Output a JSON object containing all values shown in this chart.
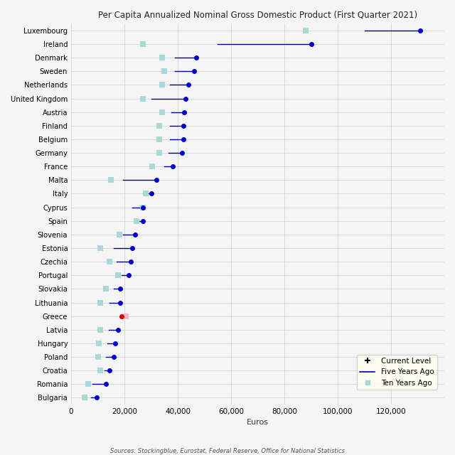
{
  "title": "Per Capita Annualized Nominal Gross Domestic Product (First Quarter 2021)",
  "xlabel": "Euros",
  "source_text": "Sources: Stockingblue, Eurostat, Federal Reserve, Office for National Statistics",
  "countries": [
    "Luxembourg",
    "Ireland",
    "Denmark",
    "Sweden",
    "Netherlands",
    "United Kingdom",
    "Austria",
    "Finland",
    "Belgium",
    "Germany",
    "France",
    "Malta",
    "Italy",
    "Cyprus",
    "Spain",
    "Slovenia",
    "Estonia",
    "Czechia",
    "Portugal",
    "Slovakia",
    "Lithuania",
    "Greece",
    "Latvia",
    "Hungary",
    "Poland",
    "Croatia",
    "Romania",
    "Bulgaria"
  ],
  "current": [
    131000,
    90000,
    47000,
    46000,
    44000,
    43000,
    42500,
    42000,
    42000,
    41500,
    38000,
    32000,
    30000,
    27000,
    27000,
    24000,
    23000,
    22500,
    21500,
    18500,
    18500,
    19000,
    17500,
    16500,
    16000,
    14500,
    13000,
    9500
  ],
  "five_years": [
    110000,
    55000,
    39000,
    39000,
    37000,
    30000,
    37500,
    37000,
    37000,
    36500,
    35000,
    19500,
    29000,
    23000,
    24000,
    19500,
    16000,
    17000,
    19000,
    16000,
    14500,
    18500,
    14000,
    13500,
    13000,
    12500,
    8000,
    7500
  ],
  "ten_years": [
    88000,
    27000,
    34000,
    35000,
    34000,
    27000,
    34000,
    33000,
    33000,
    33000,
    30500,
    15000,
    28000,
    27000,
    24500,
    18000,
    11000,
    14500,
    17500,
    13000,
    11000,
    20500,
    11000,
    10500,
    10000,
    11000,
    6500,
    5000
  ],
  "bg_color": "#f5f5f5",
  "grid_color": "#cccccc",
  "dot_color": "#0000cd",
  "line_color": "#00008b",
  "ten_year_color": "#a8d8d8",
  "greece_dot_color": "#cc0000",
  "greece_ten_color": "#f5b8c0",
  "legend_bg": "#fffff0",
  "xlim_left": 5000,
  "xlim_right": 140000,
  "xticks": [
    0,
    20000,
    40000,
    60000,
    80000,
    100000,
    120000
  ]
}
